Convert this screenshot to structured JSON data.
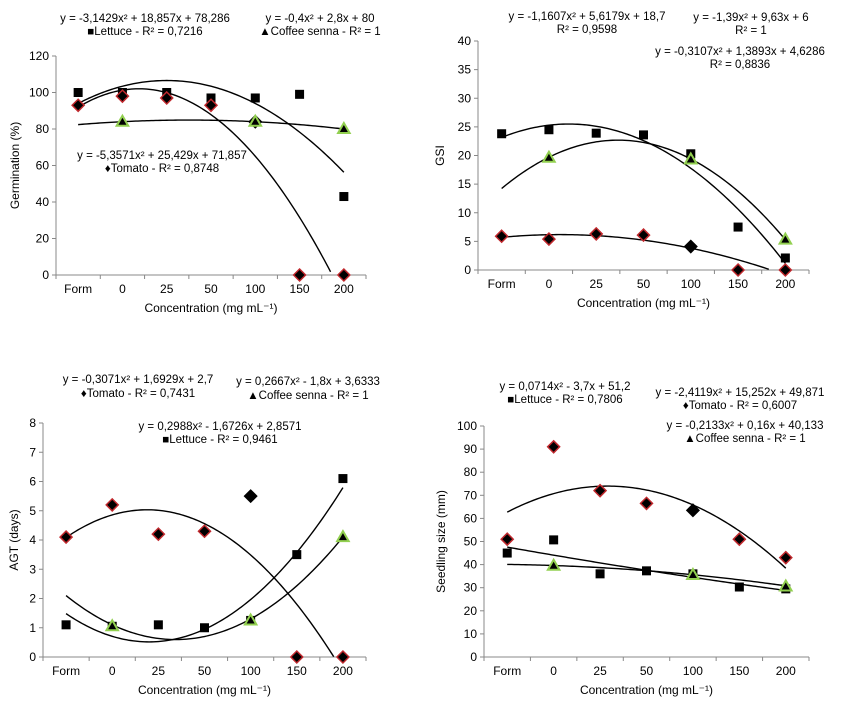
{
  "colors": {
    "lettuce": "#000000",
    "tomato_outline": "#c0282d",
    "coffee_senna": "#92d050",
    "curve": "#000000"
  },
  "chart_data": [
    {
      "type": "scatter",
      "xlabel": "Concentration (mg mL⁻¹)",
      "ylabel": "Germination (%)",
      "categories": [
        "Form",
        "0",
        "25",
        "50",
        "100",
        "150",
        "200"
      ],
      "ylim": [
        0,
        120
      ],
      "ytick_step": 20,
      "grid": false,
      "series": [
        {
          "name": "Lettuce",
          "marker": "square",
          "values": [
            100,
            100,
            100,
            97,
            97,
            99,
            43
          ]
        },
        {
          "name": "Tomato",
          "marker": "diamond",
          "values": [
            93,
            98,
            97,
            93,
            84,
            0,
            0
          ]
        },
        {
          "name": "Coffee senna",
          "marker": "triangle",
          "values": [
            null,
            84,
            null,
            null,
            84,
            null,
            80
          ]
        }
      ],
      "trendlines": [
        {
          "series": "Lettuce",
          "coefficients": [
            -3.1429,
            18.857,
            78.286
          ],
          "equation": "y = -3,1429x² + 18,857x + 78,286",
          "label": "■Lettuce - R² = 0,7216"
        },
        {
          "series": "Coffee senna",
          "coefficients": [
            -0.4,
            2.8,
            80
          ],
          "equation": "y = -0,4x² + 2,8x + 80",
          "label": "▲Coffee senna - R² = 1"
        },
        {
          "series": "Tomato",
          "coefficients": [
            -5.3571,
            25.429,
            71.857
          ],
          "equation": "y = -5,3571x² + 25,429x + 71,857",
          "label": "♦Tomato - R² = 0,8748"
        }
      ]
    },
    {
      "type": "scatter",
      "xlabel": "Concentration (mg mL⁻¹)",
      "ylabel": "GSI",
      "categories": [
        "Form",
        "0",
        "25",
        "50",
        "100",
        "150",
        "200"
      ],
      "ylim": [
        0,
        40
      ],
      "ytick_step": 5,
      "grid": false,
      "series": [
        {
          "name": "Lettuce",
          "marker": "square",
          "values": [
            23.8,
            24.5,
            23.9,
            23.6,
            20.3,
            7.5,
            2.1
          ]
        },
        {
          "name": "Tomato",
          "marker": "diamond",
          "values": [
            5.9,
            5.4,
            6.3,
            6.1,
            4.1,
            0,
            0
          ]
        },
        {
          "name": "Coffee senna",
          "marker": "triangle",
          "values": [
            null,
            19.6,
            null,
            null,
            19.3,
            null,
            5.3
          ]
        }
      ],
      "trendlines": [
        {
          "series": "Lettuce",
          "coefficients": [
            -1.1607,
            5.6179,
            18.7
          ],
          "equation": "y = -1,1607x² + 5,6179x + 18,7",
          "label": "R² = 0,9598"
        },
        {
          "series": "Coffee senna",
          "coefficients": [
            -1.39,
            9.63,
            6
          ],
          "equation": "y = -1,39x² + 9,63x + 6",
          "label": "R² = 1"
        },
        {
          "series": "Tomato",
          "coefficients": [
            -0.3107,
            1.3893,
            4.6286
          ],
          "equation": "y = -0,3107x² + 1,3893x + 4,6286",
          "label": "R² = 0,8836"
        }
      ]
    },
    {
      "type": "scatter",
      "xlabel": "Concentration (mg mL⁻¹)",
      "ylabel": "AGT (days)",
      "categories": [
        "Form",
        "0",
        "25",
        "50",
        "100",
        "150",
        "200"
      ],
      "ylim": [
        0,
        8
      ],
      "ytick_step": 1,
      "grid": false,
      "series": [
        {
          "name": "Lettuce",
          "marker": "square",
          "values": [
            1.1,
            1.05,
            1.1,
            1.0,
            1.25,
            3.5,
            6.1
          ]
        },
        {
          "name": "Tomato",
          "marker": "diamond",
          "values": [
            4.1,
            5.2,
            4.2,
            4.3,
            5.5,
            0,
            0
          ]
        },
        {
          "name": "Coffee senna",
          "marker": "triangle",
          "values": [
            null,
            1.05,
            null,
            null,
            1.25,
            null,
            4.1
          ]
        }
      ],
      "trendlines": [
        {
          "series": "Tomato",
          "coefficients": [
            -0.3071,
            1.6929,
            2.7
          ],
          "equation": "y = -0,3071x² + 1,6929x + 2,7",
          "label": "♦Tomato - R² = 0,7431"
        },
        {
          "series": "Coffee senna",
          "coefficients": [
            0.2667,
            -1.8,
            3.6333
          ],
          "equation": "y = 0,2667x² - 1,8x + 3,6333",
          "label": "▲Coffee senna - R² = 1"
        },
        {
          "series": "Lettuce",
          "coefficients": [
            0.2988,
            -1.6726,
            2.8571
          ],
          "equation": "y = 0,2988x² - 1,6726x + 2,8571",
          "label": "■Lettuce -  R² = 0,9461"
        }
      ]
    },
    {
      "type": "scatter",
      "xlabel": "Concentration (mg mL⁻¹)",
      "ylabel": "Seedling size (mm)",
      "categories": [
        "Form",
        "0",
        "25",
        "50",
        "100",
        "150",
        "200"
      ],
      "ylim": [
        0,
        100
      ],
      "ytick_step": 10,
      "grid": false,
      "series": [
        {
          "name": "Lettuce",
          "marker": "square",
          "values": [
            45,
            50.7,
            36,
            37.3,
            36,
            30.3,
            29.5
          ]
        },
        {
          "name": "Tomato",
          "marker": "diamond",
          "values": [
            51,
            91,
            72,
            66.5,
            63.5,
            51,
            43
          ]
        },
        {
          "name": "Coffee senna",
          "marker": "triangle",
          "values": [
            null,
            39.5,
            null,
            null,
            35.5,
            null,
            30.5
          ]
        }
      ],
      "trendlines": [
        {
          "series": "Lettuce",
          "coefficients": [
            0.0714,
            -3.7,
            51.2
          ],
          "equation": "y = 0,0714x² - 3,7x + 51,2",
          "label": "■Lettuce - R² = 0,7806"
        },
        {
          "series": "Tomato",
          "coefficients": [
            -2.4119,
            15.252,
            49.871
          ],
          "equation": "y = -2,4119x² + 15,252x + 49,871",
          "label": "♦Tomato - R² = 0,6007"
        },
        {
          "series": "Coffee senna",
          "coefficients": [
            -0.2133,
            0.16,
            40.133
          ],
          "equation": "y = -0,2133x² + 0,16x + 40,133",
          "label": "▲Coffee senna - R² = 1"
        }
      ]
    }
  ]
}
